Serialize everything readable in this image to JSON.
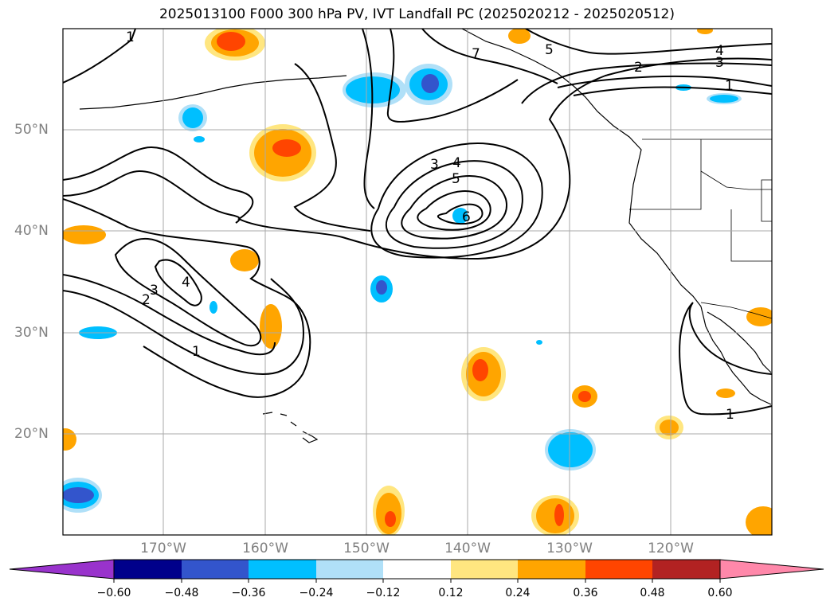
{
  "title": "2025013100 F000 300 hPa PV, IVT Landfall PC (2025020212 - 2025020512)",
  "map": {
    "lat_labels": [
      "50°N",
      "40°N",
      "30°N",
      "20°N"
    ],
    "lon_labels": [
      "170°W",
      "160°W",
      "150°W",
      "140°W",
      "130°W",
      "120°W"
    ],
    "contour_labels": [
      "1",
      "7",
      "5",
      "4",
      "3",
      "2",
      "1",
      "3",
      "4",
      "5",
      "6",
      "4",
      "3",
      "2",
      "1",
      "1"
    ],
    "fill_colors": {
      "neg_060": "#9933cc",
      "neg_048": "#00008b",
      "neg_036": "#3355cc",
      "neg_024": "#00bfff",
      "neg_012": "#b0e0f8",
      "zero": "#ffffff",
      "pos_012": "#ffe680",
      "pos_024": "#ffa500",
      "pos_036": "#ff4500",
      "pos_048": "#b22222",
      "pos_060": "#ff88aa"
    }
  },
  "colorbar": {
    "ticks": [
      "−0.60",
      "−0.48",
      "−0.36",
      "−0.24",
      "−0.12",
      "0.12",
      "0.24",
      "0.36",
      "0.48",
      "0.60"
    ],
    "colors": [
      "#9933cc",
      "#00008b",
      "#3355cc",
      "#00bfff",
      "#b0e0f8",
      "#ffffff",
      "#ffe680",
      "#ffa500",
      "#ff4500",
      "#b22222",
      "#ff88aa"
    ]
  }
}
